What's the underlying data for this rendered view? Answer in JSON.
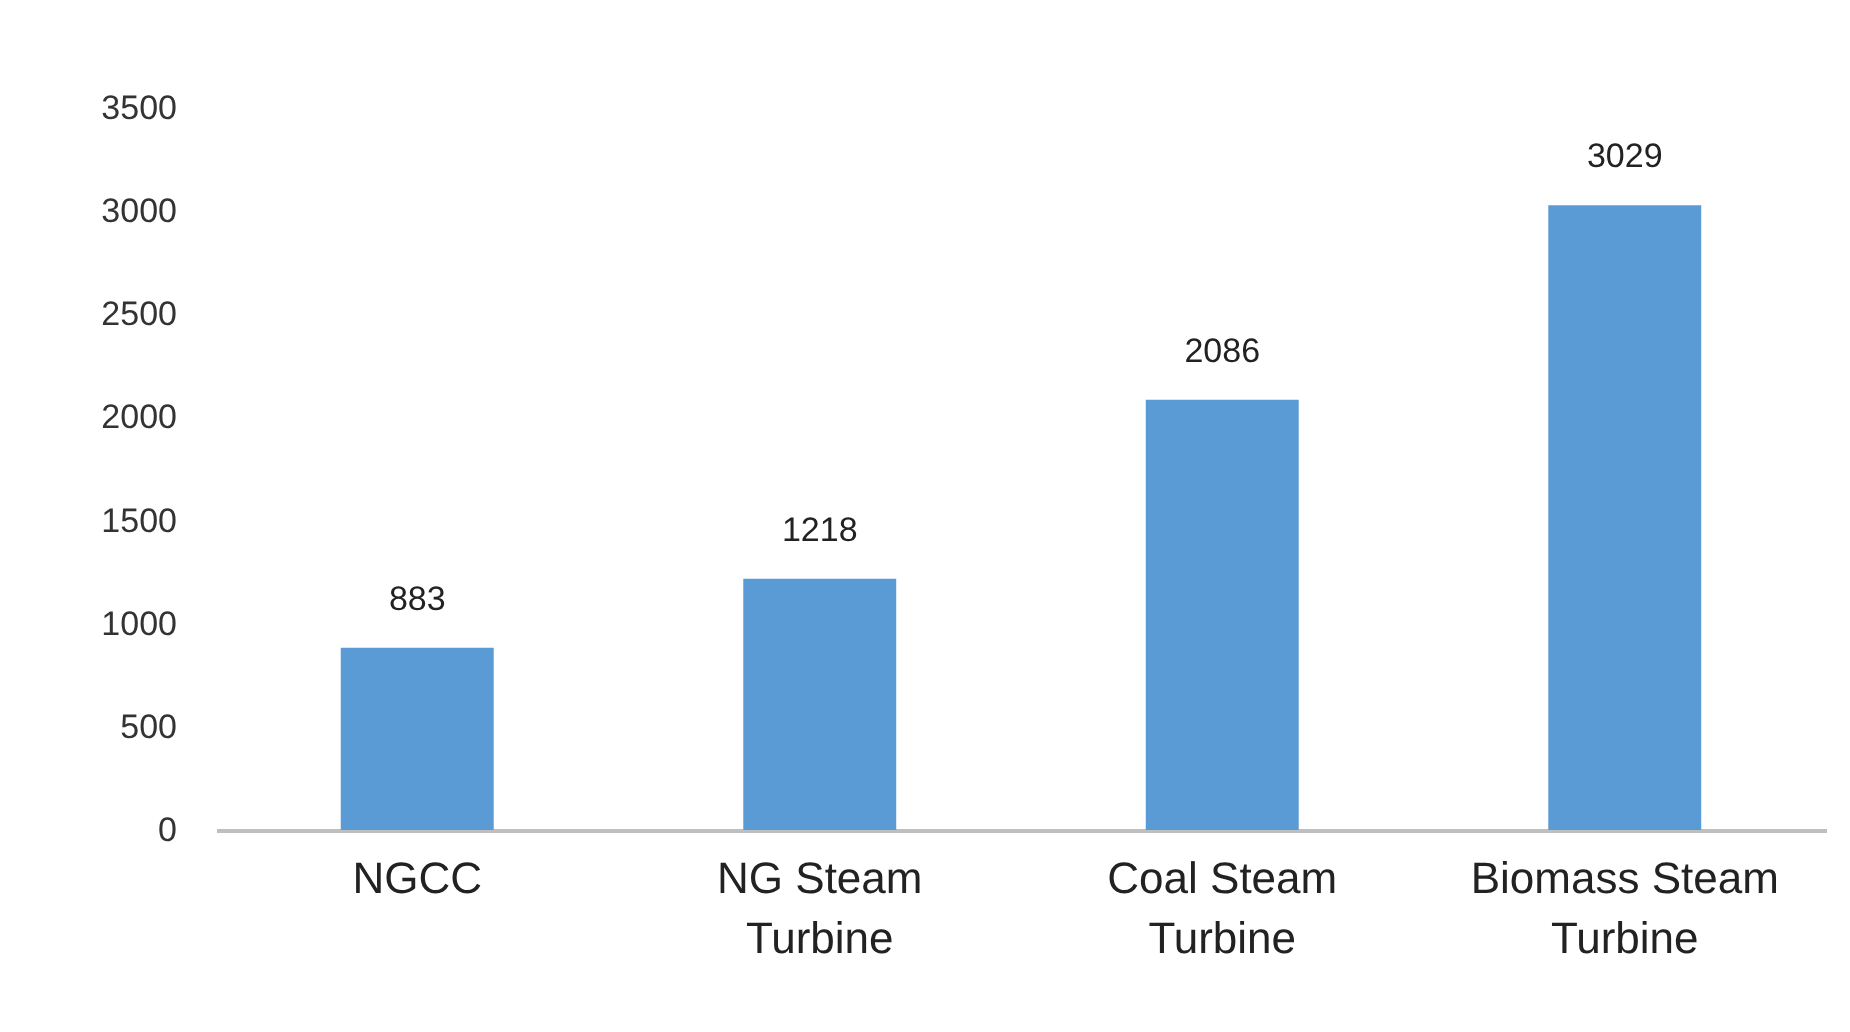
{
  "chart_data": {
    "type": "bar",
    "categories": [
      "NGCC",
      "NG Steam Turbine",
      "Coal Steam Turbine",
      "Biomass Steam Turbine"
    ],
    "values": [
      883,
      1218,
      2086,
      3029
    ],
    "color": "#5b9bd5",
    "ylim": [
      0,
      3500
    ],
    "yticks": [
      0,
      500,
      1000,
      1500,
      2000,
      2500,
      3000,
      3500
    ],
    "grid": false,
    "data_labels": true
  }
}
